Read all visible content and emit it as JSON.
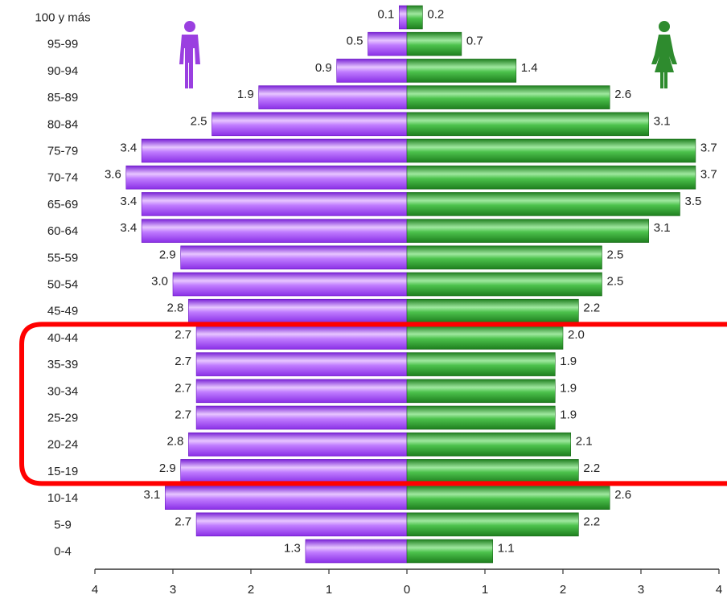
{
  "chart_data": {
    "type": "bar",
    "orientation": "horizontal",
    "categories": [
      "100 y más",
      "95-99",
      "90-94",
      "85-89",
      "80-84",
      "75-79",
      "70-74",
      "65-69",
      "60-64",
      "55-59",
      "50-54",
      "45-49",
      "40-44",
      "35-39",
      "30-34",
      "25-29",
      "20-24",
      "15-19",
      "10-14",
      "5-9",
      "0-4"
    ],
    "series": [
      {
        "icon": "male-figure-icon",
        "color": "#a64dff",
        "values": [
          0.1,
          0.5,
          0.9,
          1.9,
          2.5,
          3.4,
          3.6,
          3.4,
          3.4,
          2.9,
          3.0,
          2.8,
          2.7,
          2.7,
          2.7,
          2.7,
          2.8,
          2.9,
          3.1,
          2.7,
          1.3
        ],
        "labels": [
          "0.1",
          "0.5",
          "0.9",
          "1.9",
          "2.5",
          "3.4",
          "3.6",
          "3.4",
          "3.4",
          "2.9",
          "3.0",
          "2.8",
          "2.7",
          "2.7",
          "2.7",
          "2.7",
          "2.8",
          "2.9",
          "3.1",
          "2.7",
          "1.3"
        ]
      },
      {
        "icon": "female-figure-icon",
        "color": "#2f9e2f",
        "values": [
          0.2,
          0.7,
          1.4,
          2.6,
          3.1,
          3.7,
          3.7,
          3.5,
          3.1,
          2.5,
          2.5,
          2.2,
          2.0,
          1.9,
          1.9,
          1.9,
          2.1,
          2.2,
          2.6,
          2.2,
          1.1
        ],
        "labels": [
          "0.2",
          "0.7",
          "1.4",
          "2.6",
          "3.1",
          "3.7",
          "3.7",
          "3.5",
          "3.1",
          "2.5",
          "2.5",
          "2.2",
          "2.0",
          "1.9",
          "1.9",
          "1.9",
          "2.1",
          "2.2",
          "2.6",
          "2.2",
          "1.1"
        ]
      }
    ],
    "xlim": [
      -4,
      4
    ],
    "x_ticks": [
      -4,
      -3,
      -2,
      -1,
      0,
      1,
      2,
      3,
      4
    ],
    "x_tick_labels": [
      "4",
      "3",
      "2",
      "1",
      "0",
      "1",
      "2",
      "3",
      "4"
    ],
    "grid": false,
    "highlight": {
      "color": "#ff0000",
      "from_category": "40-44",
      "to_category": "15-19"
    }
  }
}
